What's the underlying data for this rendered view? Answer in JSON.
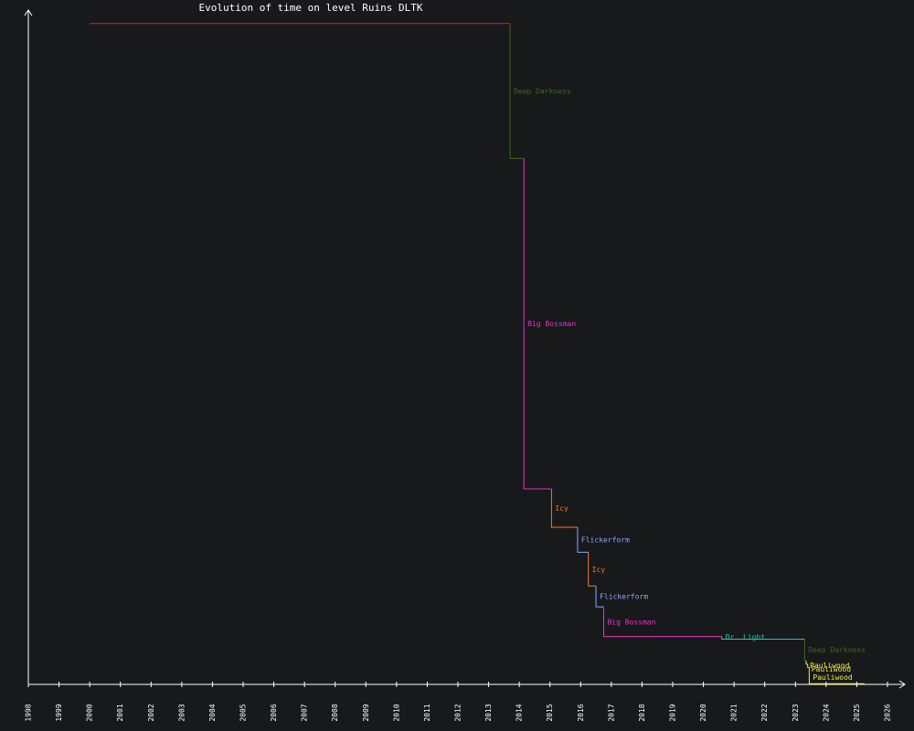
{
  "chart_data": {
    "type": "line",
    "title": "Evolution of time on level Ruins DLTK",
    "xlabel": "",
    "ylabel": "",
    "x_ticks": [
      "1998",
      "1999",
      "2000",
      "2001",
      "2002",
      "2003",
      "2004",
      "2005",
      "2006",
      "2007",
      "2008",
      "2009",
      "2010",
      "2011",
      "2012",
      "2013",
      "2014",
      "2015",
      "2016",
      "2017",
      "2018",
      "2019",
      "2020",
      "2021",
      "2022",
      "2023",
      "2024",
      "2025",
      "2026"
    ],
    "xlim": [
      1998,
      2026
    ],
    "ylim": [
      0,
      1
    ],
    "y_ticks": [],
    "grid": false,
    "steps": "stepped record progression",
    "records": [
      {
        "holder": "",
        "start": 2000.0,
        "end": 2013.7,
        "value": 0.98,
        "color": "#d2202f"
      },
      {
        "holder": "Deep Darkness",
        "start": 2013.7,
        "end": 2014.15,
        "value": 0.78,
        "color": "#3c6a1e"
      },
      {
        "holder": "Big Bossman",
        "start": 2014.15,
        "end": 2015.05,
        "value": 0.29,
        "color": "#e533c8"
      },
      {
        "holder": "Icy",
        "start": 2015.05,
        "end": 2015.9,
        "value": 0.233,
        "color": "#f07a28"
      },
      {
        "holder": "Flickerform",
        "start": 2015.9,
        "end": 2016.25,
        "value": 0.196,
        "color": "#8aa8ff"
      },
      {
        "holder": "Icy",
        "start": 2016.25,
        "end": 2016.5,
        "value": 0.146,
        "color": "#f07a28"
      },
      {
        "holder": "Flickerform",
        "start": 2016.5,
        "end": 2016.75,
        "value": 0.115,
        "color": "#8aa8ff"
      },
      {
        "holder": "Big Bossman",
        "start": 2016.75,
        "end": 2020.6,
        "value": 0.071,
        "color": "#e533c8"
      },
      {
        "holder": "Dr. Light",
        "start": 2020.6,
        "end": 2023.3,
        "value": 0.067,
        "color": "#2ec4a8"
      },
      {
        "holder": "Deep Darkness",
        "start": 2023.3,
        "end": 2023.35,
        "value": 0.035,
        "color": "#3c6a1e"
      },
      {
        "holder": "Pauliwood",
        "start": 2023.35,
        "end": 2023.4,
        "value": 0.03,
        "color": "#f4f03a"
      },
      {
        "holder": "Pauliwood",
        "start": 2023.4,
        "end": 2023.45,
        "value": 0.025,
        "color": "#f4f03a"
      },
      {
        "holder": "Pauliwood",
        "start": 2023.45,
        "end": 2025.25,
        "value": 0.001,
        "color": "#f4f03a"
      }
    ]
  }
}
